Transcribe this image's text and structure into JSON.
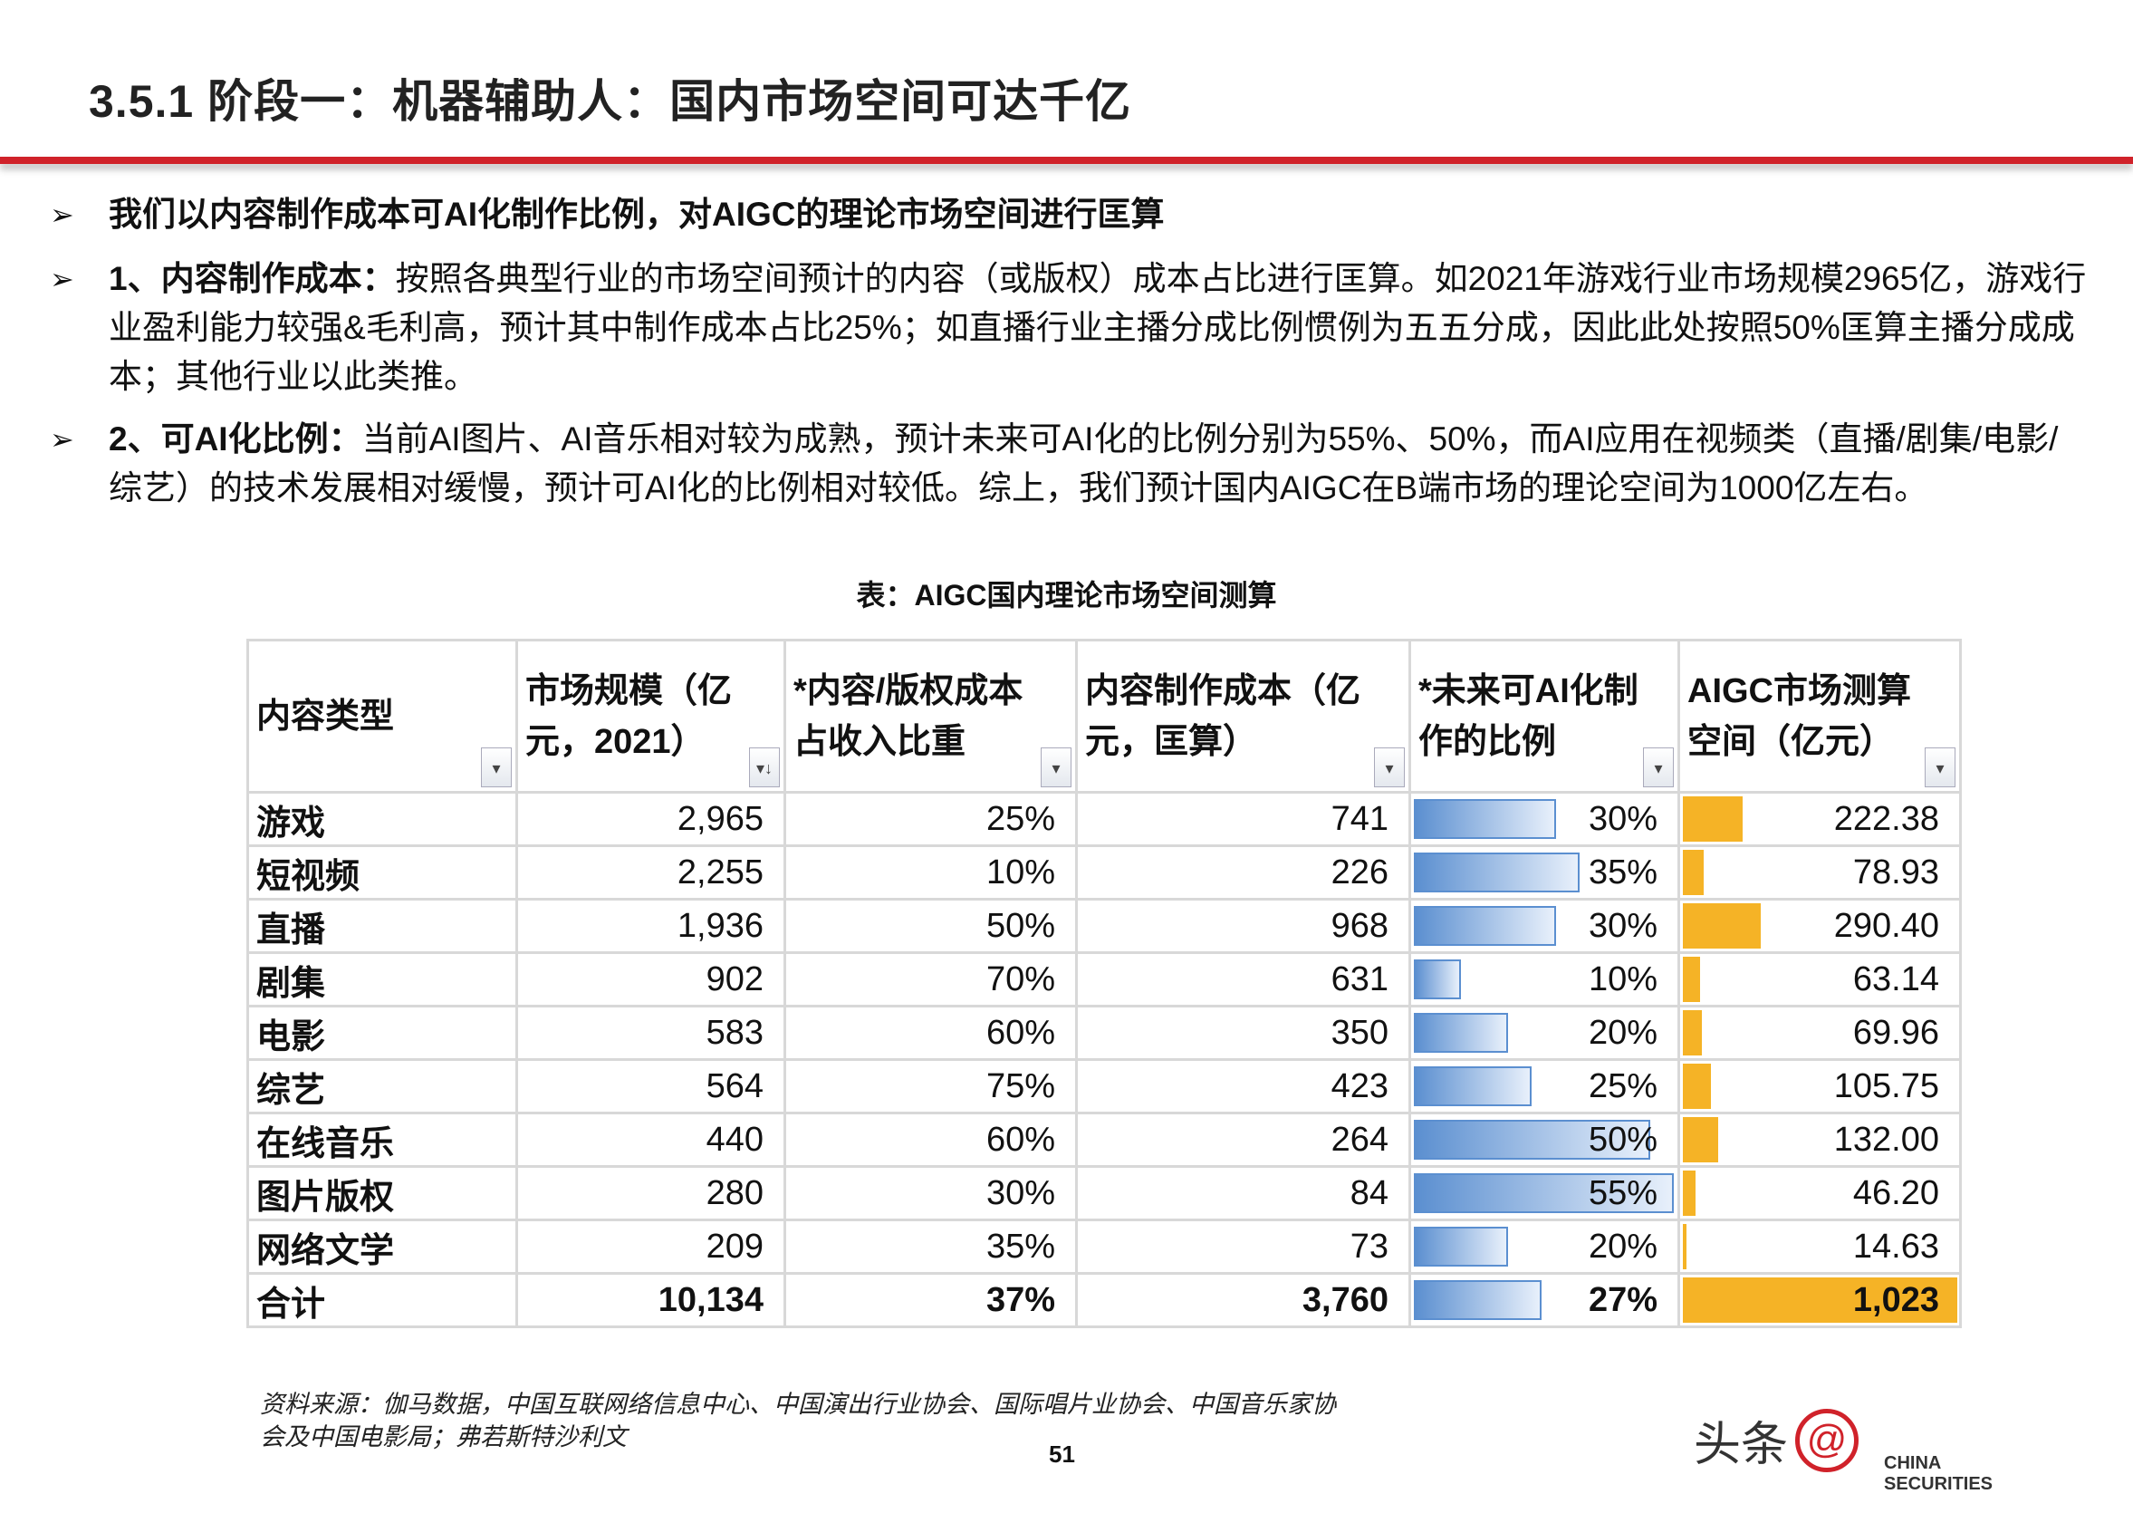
{
  "title": "3.5.1 阶段一：机器辅助人：国内市场空间可达千亿",
  "bullets": [
    {
      "bold": "",
      "text": "我们以内容制作成本可AI化制作比例，对AIGC的理论市场空间进行匡算"
    },
    {
      "bold": "1、内容制作成本：",
      "text": "按照各典型行业的市场空间预计的内容（或版权）成本占比进行匡算。如2021年游戏行业市场规模2965亿，游戏行业盈利能力较强&毛利高，预计其中制作成本占比25%；如直播行业主播分成比例惯例为五五分成，因此此处按照50%匡算主播分成成本；其他行业以此类推。"
    },
    {
      "bold": "2、可AI化比例：",
      "text": "当前AI图片、AI音乐相对较为成熟，预计未来可AI化的比例分别为55%、50%，而AI应用在视频类（直播/剧集/电影/综艺）的技术发展相对缓慢，预计可AI化的比例相对较低。综上，我们预计国内AIGC在B端市场的理论空间为1000亿左右。"
    }
  ],
  "caption": "表：AIGC国内理论市场空间测算",
  "table": {
    "headers": [
      "内容类型",
      "市场规模（亿元，2021）",
      "*内容/版权成本占收入比重",
      "内容制作成本（亿元，匡算）",
      "*未来可AI化制作的比例",
      "AIGC市场测算空间（亿元）"
    ],
    "rows": [
      [
        "游戏",
        "2,965",
        "25%",
        "741",
        "30%",
        "222.38"
      ],
      [
        "短视频",
        "2,255",
        "10%",
        "226",
        "35%",
        "78.93"
      ],
      [
        "直播",
        "1,936",
        "50%",
        "968",
        "30%",
        "290.40"
      ],
      [
        "剧集",
        "902",
        "70%",
        "631",
        "10%",
        "63.14"
      ],
      [
        "电影",
        "583",
        "60%",
        "350",
        "20%",
        "69.96"
      ],
      [
        "综艺",
        "564",
        "75%",
        "423",
        "25%",
        "105.75"
      ],
      [
        "在线音乐",
        "440",
        "60%",
        "264",
        "50%",
        "132.00"
      ],
      [
        "图片版权",
        "280",
        "30%",
        "84",
        "55%",
        "46.20"
      ],
      [
        "网络文学",
        "209",
        "35%",
        "73",
        "20%",
        "14.63"
      ]
    ],
    "total": [
      "合计",
      "10,134",
      "37%",
      "3,760",
      "27%",
      "1,023"
    ],
    "ai_ratio_values": [
      30,
      35,
      30,
      10,
      20,
      25,
      50,
      55,
      20,
      27
    ],
    "aigc_values": [
      222.38,
      78.93,
      290.4,
      63.14,
      69.96,
      105.75,
      132.0,
      46.2,
      14.63,
      1023
    ],
    "bar_color": "#5b8fd0",
    "orange_color": "#f5b326"
  },
  "source": [
    "资料来源：伽马数据，中国互联网络信息中心、中国演出行业协会、国际唱片业协会、中国音乐家协",
    "会及中国电影局；弗若斯特沙利文"
  ],
  "page_number": "51",
  "watermark": {
    "text": "头条",
    "at": "@",
    "brand": "CHINA SECURITIES"
  }
}
